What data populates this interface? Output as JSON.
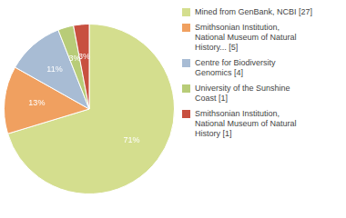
{
  "chart_data": {
    "type": "pie",
    "categories": [
      "Mined from GenBank, NCBI [27]",
      "Smithsonian Institution,\nNational Museum of Natural\nHistory... [5]",
      "Centre for Biodiversity\nGenomics [4]",
      "University of the Sunshine\nCoast [1]",
      "Smithsonian Institution,\nNational Museum of Natural\nHistory [1]"
    ],
    "values": [
      71,
      13,
      11,
      3,
      3
    ],
    "value_labels": [
      "71%",
      "13%",
      "11%",
      "3%",
      "3%"
    ],
    "colors": [
      "#d4de8e",
      "#f0a060",
      "#a8bcd4",
      "#b8cc78",
      "#c85040"
    ],
    "data_labels": true,
    "legend": "right"
  }
}
